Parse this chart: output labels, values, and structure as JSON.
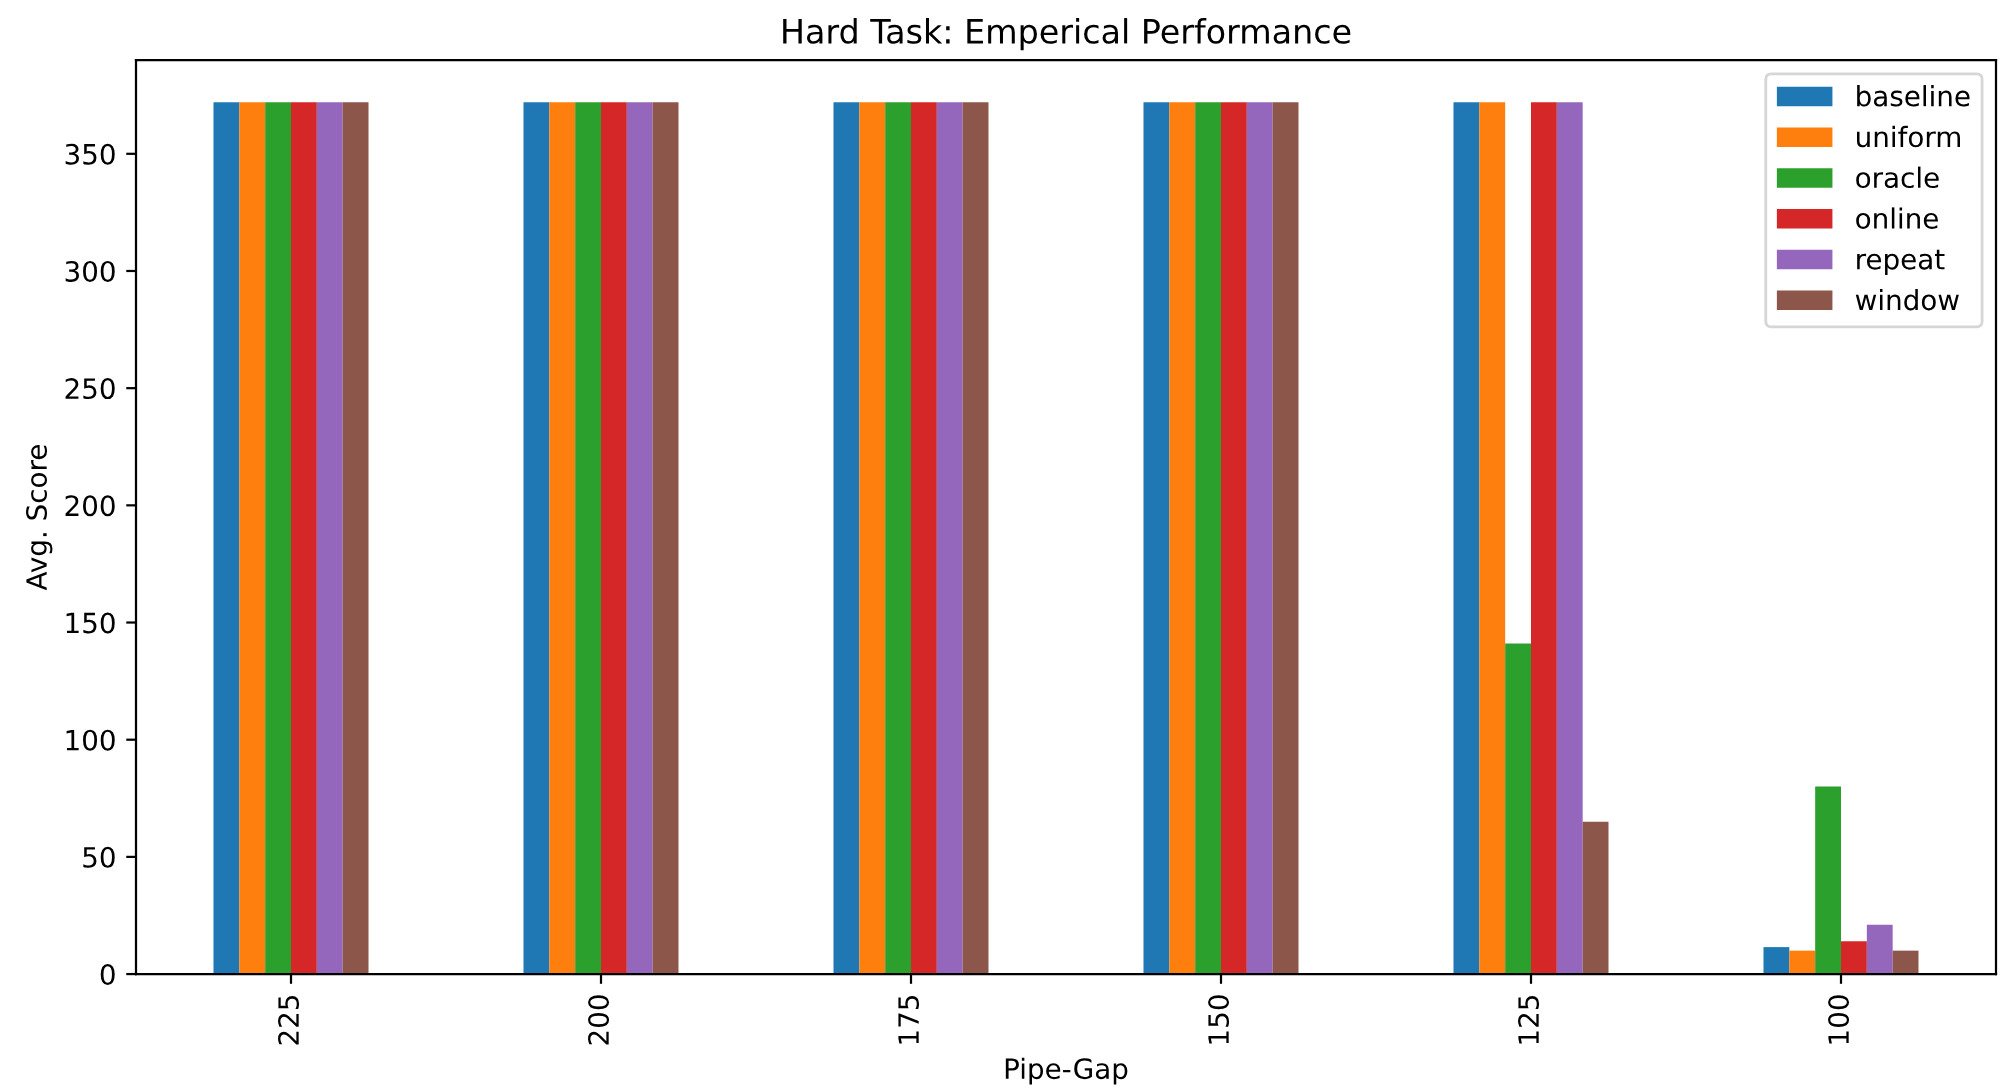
{
  "chart_data": {
    "type": "bar",
    "title": "Hard Task: Emperical Performance",
    "xlabel": "Pipe-Gap",
    "ylabel": "Avg. Score",
    "categories": [
      "225",
      "200",
      "175",
      "150",
      "125",
      "100"
    ],
    "series": [
      {
        "name": "baseline",
        "color": "#1f77b4",
        "values": [
          372,
          372,
          372,
          372,
          372,
          11.5
        ]
      },
      {
        "name": "uniform",
        "color": "#ff7f0e",
        "values": [
          372,
          372,
          372,
          372,
          372,
          10
        ]
      },
      {
        "name": "oracle",
        "color": "#2ca02c",
        "values": [
          372,
          372,
          372,
          372,
          141,
          80
        ]
      },
      {
        "name": "online",
        "color": "#d62728",
        "values": [
          372,
          372,
          372,
          372,
          372,
          14
        ]
      },
      {
        "name": "repeat",
        "color": "#9467bd",
        "values": [
          372,
          372,
          372,
          372,
          372,
          21
        ]
      },
      {
        "name": "window",
        "color": "#8c564b",
        "values": [
          372,
          372,
          372,
          372,
          65,
          10
        ]
      }
    ],
    "ylim": [
      0,
      390
    ],
    "yticks": [
      0,
      50,
      100,
      150,
      200,
      250,
      300,
      350
    ],
    "legend": "top right",
    "grid": false
  }
}
